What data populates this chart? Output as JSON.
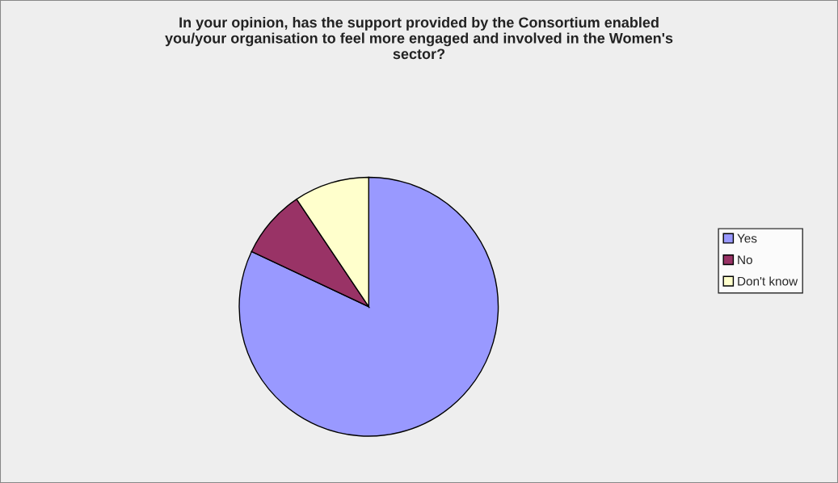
{
  "chart_data": {
    "type": "pie",
    "title": "In your opinion, has the support provided by the Consortium enabled\nyou/your organisation to feel more engaged and involved in the Women's\nsector?",
    "categories": [
      "Yes",
      "No",
      "Don't know"
    ],
    "values": [
      82,
      8.6,
      9.4
    ],
    "colors": [
      "#9999ff",
      "#993366",
      "#ffffcc"
    ],
    "legend": "right"
  }
}
